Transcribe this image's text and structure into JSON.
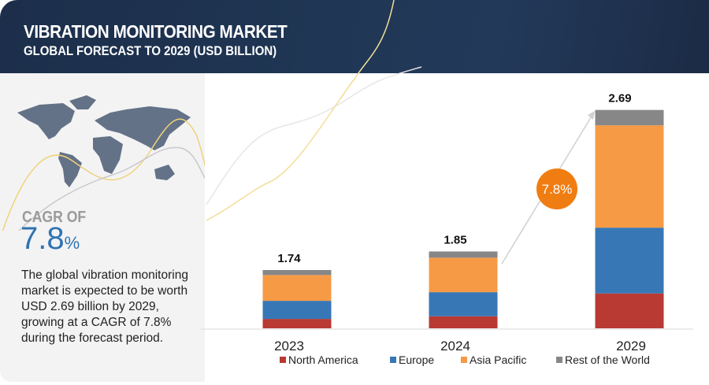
{
  "header": {
    "title": "VIBRATION MONITORING MARKET",
    "subtitle": "GLOBAL FORECAST TO 2029 (USD BILLION)"
  },
  "left_panel": {
    "cagr_label": "CAGR OF",
    "cagr_value": "7.8",
    "cagr_unit": "%",
    "description": "The global vibration monitoring market is expected to be worth USD 2.69 billion  by 2029, growing at a CAGR of 7.8% during the forecast period."
  },
  "chart_data": {
    "type": "bar",
    "stacked": true,
    "title": "Vibration Monitoring Market, Global Forecast to 2029 (USD Billion)",
    "categories": [
      "2023",
      "2024",
      "2029"
    ],
    "totals": [
      "1.74",
      "1.85",
      "2.69"
    ],
    "total_values": [
      1.74,
      1.85,
      2.69
    ],
    "series": [
      {
        "name": "North America",
        "color": "#b83a33",
        "values": [
          0.28,
          0.29,
          0.43
        ]
      },
      {
        "name": "Europe",
        "color": "#3777b6",
        "values": [
          0.54,
          0.58,
          0.81
        ]
      },
      {
        "name": "Asia Pacific",
        "color": "#f79a45",
        "values": [
          0.77,
          0.83,
          1.26
        ]
      },
      {
        "name": "Rest of the World",
        "color": "#878787",
        "values": [
          0.15,
          0.15,
          0.19
        ]
      }
    ],
    "annotation": "7.8%",
    "annotation_color": "#f07d12",
    "legend_position": "bottom",
    "grid": false
  }
}
